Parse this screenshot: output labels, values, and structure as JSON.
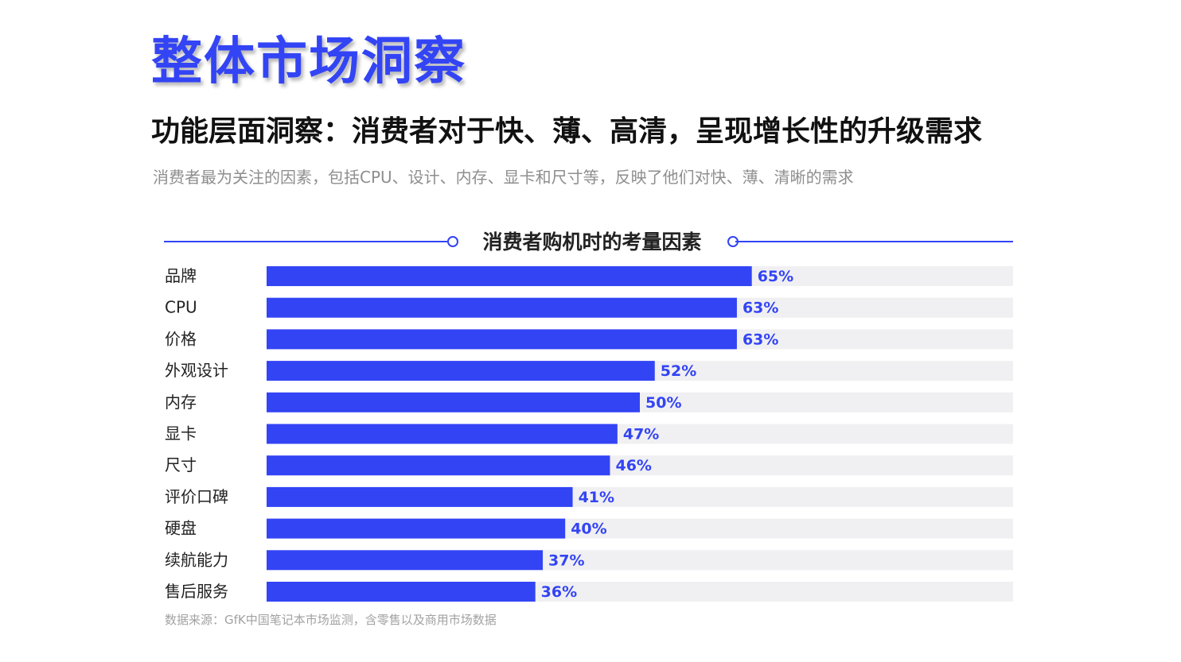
{
  "header": {
    "title": "整体市场洞察",
    "subtitle_bold": "功能层面洞察：",
    "subtitle_rest": "消费者对于快、薄、高清，呈现增长性的升级需求",
    "description": "消费者最为关注的因素，包括CPU、设计、内存、显卡和尺寸等，反映了他们对快、薄、清晰的需求"
  },
  "footer": {
    "source": "数据来源：GfK中国笔记本市场监测，含零售以及商用市场数据"
  },
  "colors": {
    "accent": "#3344f5",
    "track": "#f0f0f2",
    "label_text": "#222222"
  },
  "chart_data": {
    "type": "bar",
    "orientation": "horizontal",
    "title": "消费者购机时的考量因素",
    "categories": [
      "品牌",
      "CPU",
      "价格",
      "外观设计",
      "内存",
      "显卡",
      "尺寸",
      "评价口碑",
      "硬盘",
      "续航能力",
      "售后服务"
    ],
    "values": [
      65,
      63,
      63,
      52,
      50,
      47,
      46,
      41,
      40,
      37,
      36
    ],
    "value_labels": [
      "65%",
      "63%",
      "63%",
      "52%",
      "50%",
      "47%",
      "46%",
      "41%",
      "40%",
      "37%",
      "36%"
    ],
    "unit": "%",
    "xlim": [
      0,
      100
    ],
    "grid": false,
    "legend": "none"
  }
}
